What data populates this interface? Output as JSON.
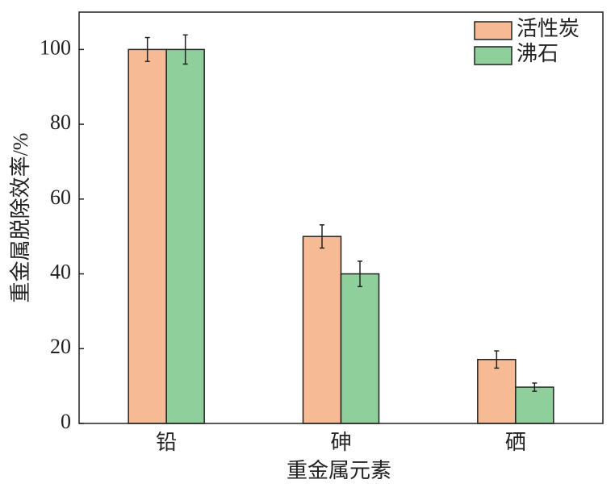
{
  "chart_data": {
    "type": "bar",
    "xlabel": "重金属元素",
    "ylabel": "重金属脱除效率/%",
    "categories": [
      "铅",
      "砷",
      "硒"
    ],
    "series": [
      {
        "name": "活性炭",
        "color": "#f6bb95",
        "values": [
          100,
          50,
          17.1
        ],
        "errors": [
          3.2,
          3.1,
          2.3
        ]
      },
      {
        "name": "沸石",
        "color": "#8fcf9c",
        "values": [
          100,
          40,
          9.7
        ],
        "errors": [
          3.9,
          3.4,
          1.1
        ]
      }
    ],
    "ylim": [
      0,
      110
    ],
    "yticks": [
      0,
      20,
      40,
      60,
      80,
      100
    ],
    "legend": "upper right"
  }
}
